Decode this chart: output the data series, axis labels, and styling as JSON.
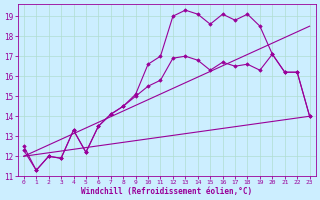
{
  "xlabel": "Windchill (Refroidissement éolien,°C)",
  "bg_color": "#cceeff",
  "line_color": "#990099",
  "grid_color": "#b0ddd0",
  "xlim": [
    -0.5,
    23.5
  ],
  "ylim": [
    11,
    19.6
  ],
  "yticks": [
    11,
    12,
    13,
    14,
    15,
    16,
    17,
    18,
    19
  ],
  "xticks": [
    0,
    1,
    2,
    3,
    4,
    5,
    6,
    7,
    8,
    9,
    10,
    11,
    12,
    13,
    14,
    15,
    16,
    17,
    18,
    19,
    20,
    21,
    22,
    23
  ],
  "line1_x": [
    0,
    1,
    2,
    3,
    4,
    5,
    6,
    7,
    8,
    9,
    10,
    11,
    12,
    13,
    14,
    15,
    16,
    17,
    18,
    19,
    20,
    21,
    22,
    23
  ],
  "line1_y": [
    12.5,
    11.3,
    12.0,
    11.9,
    13.3,
    12.2,
    13.5,
    14.1,
    14.5,
    15.1,
    16.6,
    17.0,
    19.0,
    19.3,
    19.1,
    18.6,
    19.1,
    18.8,
    19.1,
    18.5,
    17.1,
    16.2,
    16.2,
    14.0
  ],
  "line2_x": [
    0,
    1,
    2,
    3,
    4,
    5,
    6,
    7,
    8,
    9,
    10,
    11,
    12,
    13,
    14,
    15,
    16,
    17,
    18,
    19,
    20,
    21,
    22,
    23
  ],
  "line2_y": [
    12.3,
    11.3,
    12.0,
    11.9,
    13.3,
    12.2,
    13.5,
    14.1,
    14.5,
    15.0,
    15.5,
    15.8,
    16.9,
    17.0,
    16.8,
    16.3,
    16.7,
    16.5,
    16.6,
    16.3,
    17.1,
    16.2,
    16.2,
    14.0
  ],
  "line3_x": [
    0,
    23
  ],
  "line3_y": [
    12.0,
    14.0
  ],
  "line4_x": [
    0,
    23
  ],
  "line4_y": [
    12.0,
    18.5
  ]
}
